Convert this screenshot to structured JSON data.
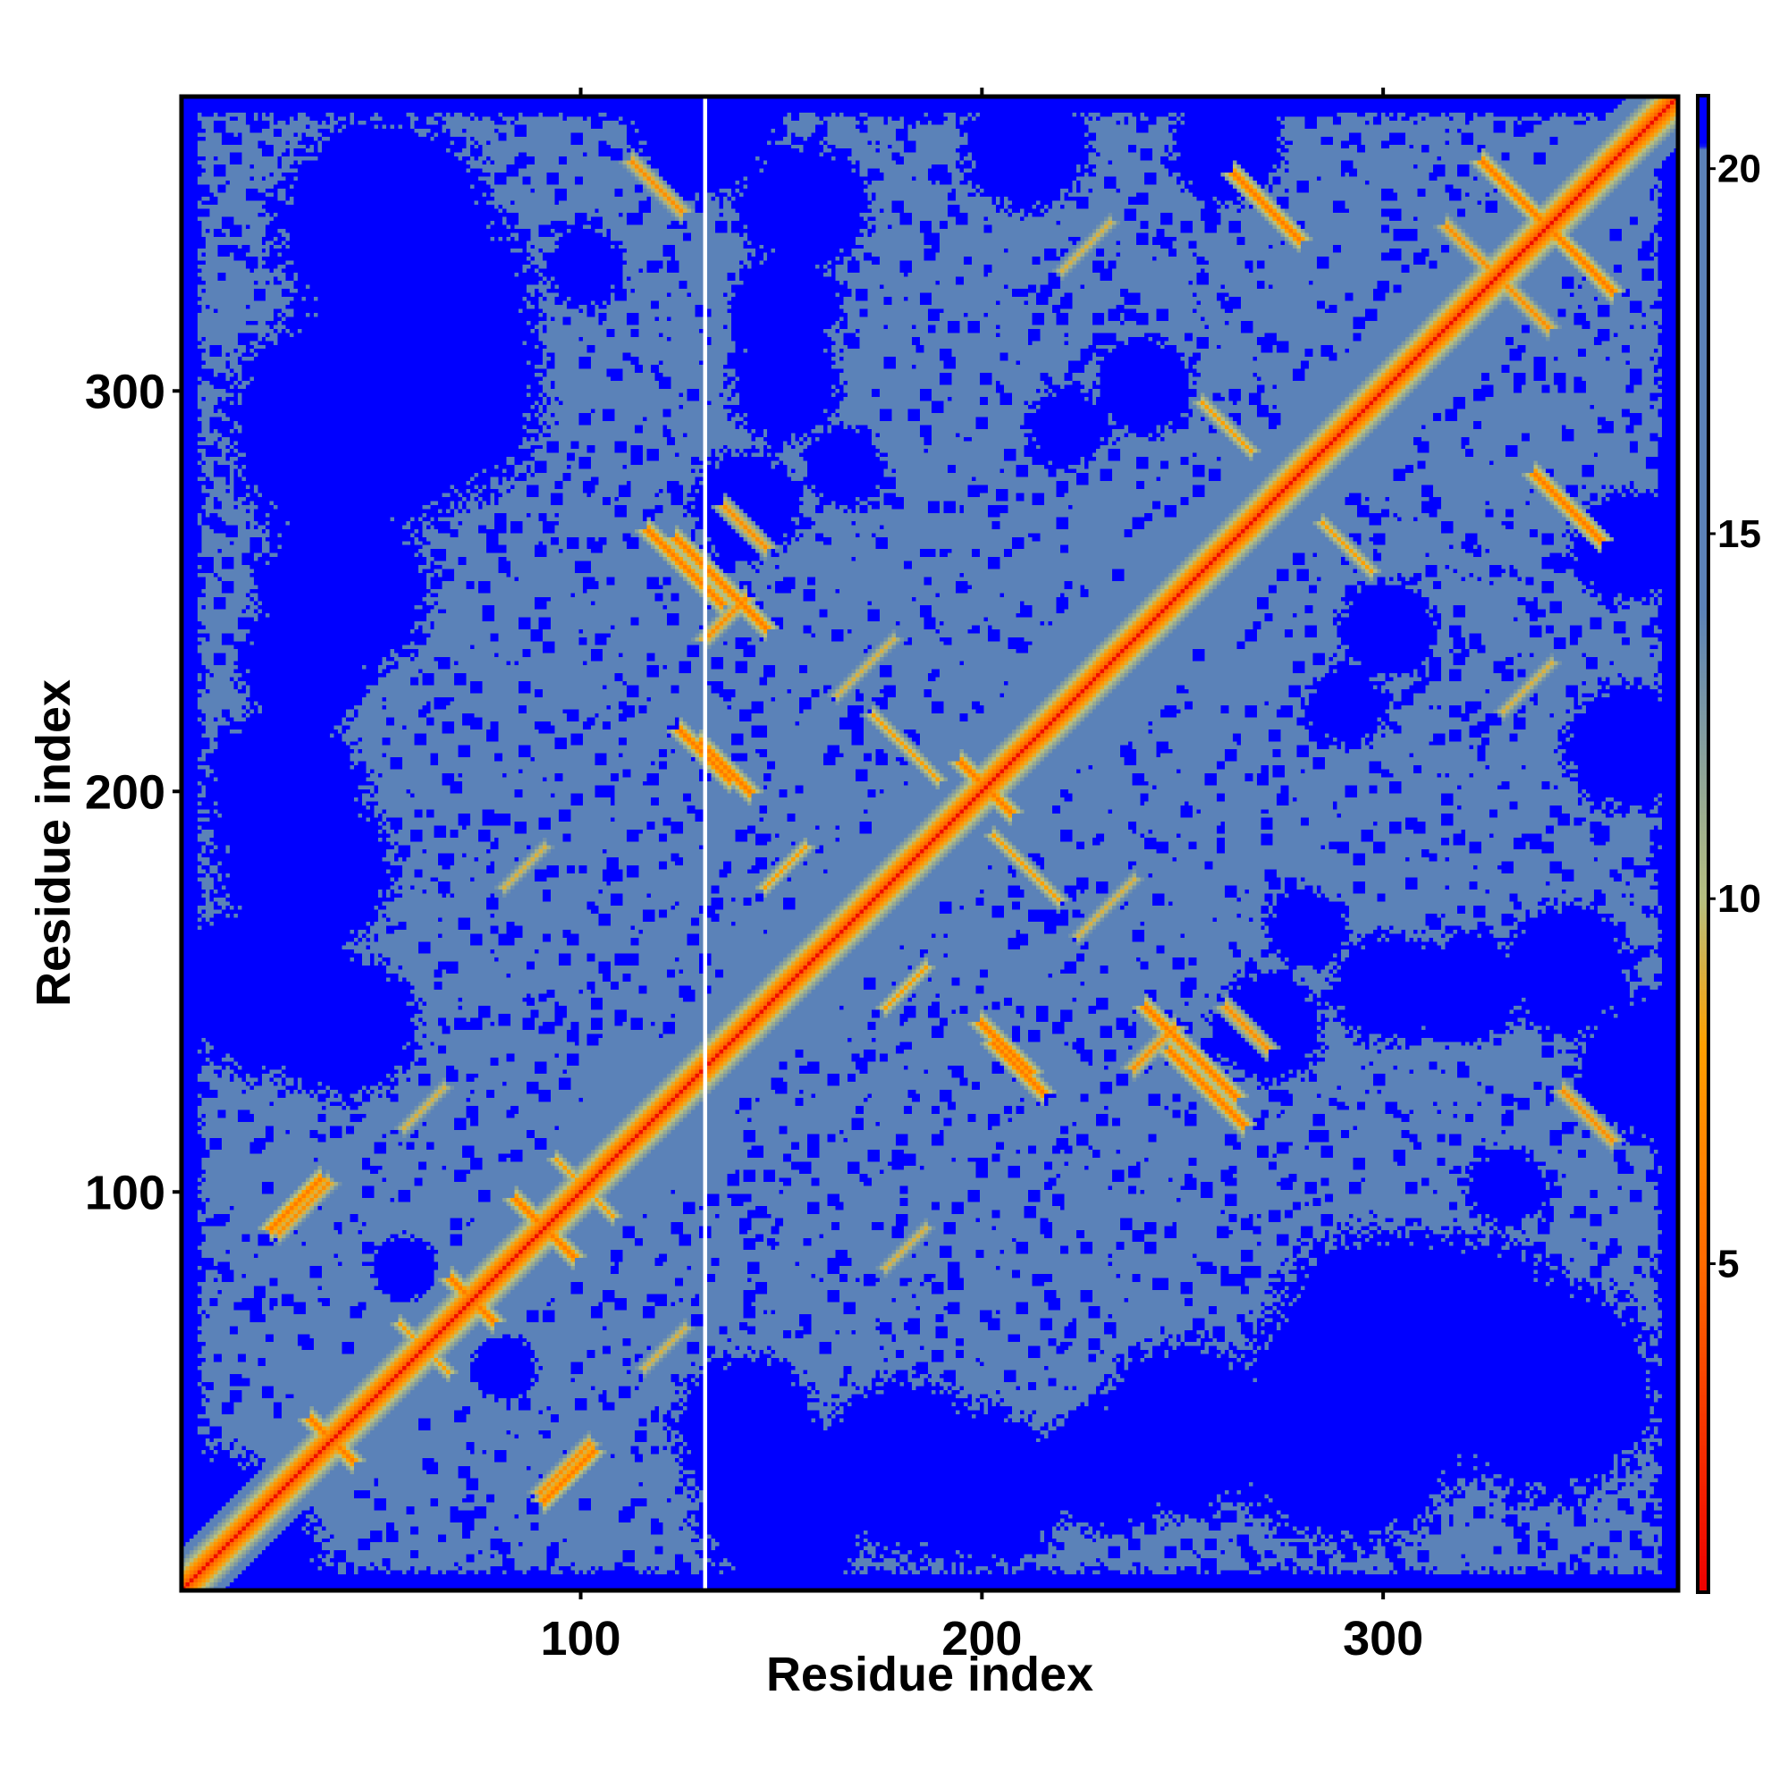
{
  "chart_data": {
    "type": "heatmap",
    "title": "",
    "xlabel": "Residue index",
    "ylabel": "Residue index",
    "n_residues": 373,
    "xlim": [
      1,
      373
    ],
    "ylim": [
      1,
      373
    ],
    "x_ticks": [
      100,
      200,
      300
    ],
    "y_ticks": [
      100,
      200,
      300
    ],
    "x_tick_labels": [
      "100",
      "200",
      "300"
    ],
    "y_tick_labels": [
      "100",
      "200",
      "300"
    ],
    "colorbar": {
      "range": [
        0.5,
        21
      ],
      "ticks": [
        5,
        10,
        15,
        20
      ],
      "tick_labels": [
        "5",
        "10",
        "15",
        "20"
      ],
      "colors": [
        {
          "value": 0.5,
          "color": "#ee0000"
        },
        {
          "value": 5,
          "color": "#ff6a00"
        },
        {
          "value": 8,
          "color": "#ffa000"
        },
        {
          "value": 10,
          "color": "#b6bf80"
        },
        {
          "value": 14,
          "color": "#5b82b8"
        },
        {
          "value": 20.3,
          "color": "#5b82b8"
        },
        {
          "value": 20.31,
          "color": "#0000ff"
        },
        {
          "value": 21,
          "color": "#0000ff"
        }
      ]
    },
    "blank_column_residue": 131,
    "distance_map": {
      "description_values": "pairwise C-alpha distance in Angstrom, capped at 21",
      "diagonal_value": 1,
      "background_value": 16,
      "far_value": 21,
      "contacts": [
        {
          "center": [
            37,
            37
          ],
          "orientation": "anti",
          "length": 10,
          "value": 6
        },
        {
          "center": [
            72,
            72
          ],
          "orientation": "anti",
          "length": 10,
          "value": 6
        },
        {
          "center": [
            90,
            90
          ],
          "orientation": "anti",
          "length": 14,
          "value": 6
        },
        {
          "center": [
            200,
            200
          ],
          "orientation": "anti",
          "length": 12,
          "value": 6
        },
        {
          "center": [
            28,
            96
          ],
          "orientation": "parallel",
          "length": 12,
          "value": 6
        },
        {
          "center": [
            95,
            30
          ],
          "orientation": "parallel",
          "length": 12,
          "value": 7
        },
        {
          "center": [
            125,
            255
          ],
          "orientation": "anti",
          "length": 18,
          "value": 6
        },
        {
          "center": [
            130,
            208
          ],
          "orientation": "anti",
          "length": 12,
          "value": 6
        },
        {
          "center": [
            208,
            130
          ],
          "orientation": "anti",
          "length": 12,
          "value": 6
        },
        {
          "center": [
            205,
            135
          ],
          "orientation": "anti",
          "length": 12,
          "value": 6
        },
        {
          "center": [
            255,
            130
          ],
          "orientation": "anti",
          "length": 14,
          "value": 6
        },
        {
          "center": [
            245,
            140
          ],
          "orientation": "anti",
          "length": 10,
          "value": 6
        },
        {
          "center": [
            265,
            140
          ],
          "orientation": "anti",
          "length": 10,
          "value": 7
        },
        {
          "center": [
            242,
            135
          ],
          "orientation": "parallel",
          "length": 10,
          "value": 7
        },
        {
          "center": [
            330,
            350
          ],
          "orientation": "anti",
          "length": 12,
          "value": 6
        },
        {
          "center": [
            345,
            335
          ],
          "orientation": "anti",
          "length": 18,
          "value": 6
        },
        {
          "center": [
            270,
            345
          ],
          "orientation": "anti",
          "length": 16,
          "value": 6
        },
        {
          "center": [
            350,
            118
          ],
          "orientation": "anti",
          "length": 12,
          "value": 7
        },
        {
          "center": [
            320,
            335
          ],
          "orientation": "anti",
          "length": 10,
          "value": 7
        },
        {
          "center": [
            290,
            260
          ],
          "orientation": "anti",
          "length": 12,
          "value": 8
        },
        {
          "center": [
            180,
            210
          ],
          "orientation": "anti",
          "length": 16,
          "value": 8
        },
        {
          "center": [
            210,
            180
          ],
          "orientation": "anti",
          "length": 16,
          "value": 8
        },
        {
          "center": [
            170,
            230
          ],
          "orientation": "parallel",
          "length": 14,
          "value": 9
        },
        {
          "center": [
            150,
            180
          ],
          "orientation": "parallel",
          "length": 10,
          "value": 8
        },
        {
          "center": [
            60,
            60
          ],
          "orientation": "anti",
          "length": 12,
          "value": 8
        },
        {
          "center": [
            100,
            100
          ],
          "orientation": "anti",
          "length": 14,
          "value": 8
        },
        {
          "center": [
            120,
            60
          ],
          "orientation": "parallel",
          "length": 10,
          "value": 9
        },
        {
          "center": [
            180,
            85
          ],
          "orientation": "parallel",
          "length": 10,
          "value": 9
        },
        {
          "center": [
            335,
            225
          ],
          "orientation": "parallel",
          "length": 12,
          "value": 9
        }
      ],
      "far_blobs": [
        {
          "center": [
            40,
            290
          ],
          "radius": 30
        },
        {
          "center": [
            60,
            320
          ],
          "radius": 28
        },
        {
          "center": [
            30,
            180
          ],
          "radius": 22
        },
        {
          "center": [
            40,
            140
          ],
          "radius": 18
        },
        {
          "center": [
            30,
            230
          ],
          "radius": 16
        },
        {
          "center": [
            300,
            60
          ],
          "radius": 30
        },
        {
          "center": [
            340,
            50
          ],
          "radius": 28
        },
        {
          "center": [
            250,
            40
          ],
          "radius": 22
        },
        {
          "center": [
            200,
            25
          ],
          "radius": 20
        },
        {
          "center": [
            150,
            20
          ],
          "radius": 22
        },
        {
          "center": [
            270,
            140
          ],
          "radius": 14
        },
        {
          "center": [
            320,
            150
          ],
          "radius": 14
        },
        {
          "center": [
            155,
            345
          ],
          "radius": 16
        },
        {
          "center": [
            150,
            300
          ],
          "radius": 14
        },
        {
          "center": [
            240,
            300
          ],
          "radius": 12
        },
        {
          "center": [
            210,
            360
          ],
          "radius": 16
        },
        {
          "center": [
            290,
            220
          ],
          "radius": 10
        },
        {
          "center": [
            365,
            130
          ],
          "radius": 18
        },
        {
          "center": [
            360,
            260
          ],
          "radius": 14
        },
        {
          "center": [
            100,
            330
          ],
          "radius": 10
        },
        {
          "center": [
            165,
            280
          ],
          "radius": 10
        },
        {
          "center": [
            55,
            80
          ],
          "radius": 8
        },
        {
          "center": [
            10,
            5
          ],
          "radius": 25
        }
      ]
    }
  }
}
